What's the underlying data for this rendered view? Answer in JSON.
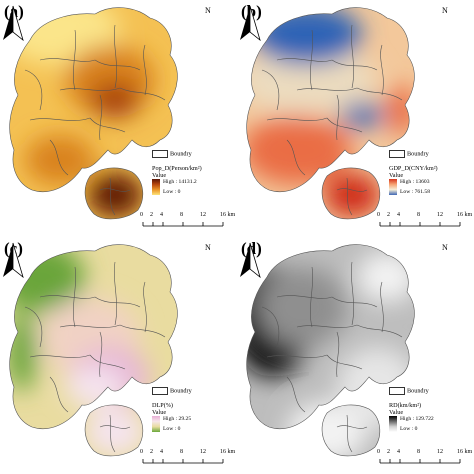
{
  "panels": [
    {
      "id": "a",
      "label": "(a)",
      "north": "N",
      "legend": {
        "boundary": "Boundry",
        "title": "Pop_D(Person/km²)",
        "value_word": "Value",
        "high": "High : 14131.2",
        "low": "Low : 0"
      },
      "ramp_colors": [
        "#5a1606",
        "#b6470d",
        "#e99426",
        "#fde37a"
      ],
      "colors": {
        "bg": "#f4c153",
        "c1": "#fbe58a",
        "c2": "#d9821f",
        "c3": "#a7410b",
        "c4": "#5d1705"
      }
    },
    {
      "id": "b",
      "label": "(b)",
      "north": "N",
      "legend": {
        "boundary": "Boundry",
        "title": "GDP_D(CNY/km²)",
        "value_word": "Value",
        "high": "High : 13603",
        "low": "Low : 761.58"
      },
      "ramp_colors": [
        "#d6341c",
        "#f6a473",
        "#f7efd5",
        "#3f67b5"
      ],
      "colors": {
        "bg": "#f3c89b",
        "c1": "#ecdcbf",
        "c2": "#2e63b6",
        "c3": "#ea6d44",
        "c4": "#cf2b17"
      }
    },
    {
      "id": "c",
      "label": "(c)",
      "north": "N",
      "legend": {
        "boundary": "Boundry",
        "title": "DLP(%)",
        "value_word": "Value",
        "high": "High : 29.25",
        "low": "Low : 0"
      },
      "ramp_colors": [
        "#e8aed6",
        "#f6e6e9",
        "#e8dca0",
        "#6ba83b"
      ],
      "colors": {
        "bg": "#e9dca0",
        "c1": "#f1d2c4",
        "c2": "#6aa53b",
        "c3": "#e6b6d6",
        "c4": "#f5e4ef"
      }
    },
    {
      "id": "d",
      "label": "(d)",
      "north": "N",
      "legend": {
        "boundary": "Boundry",
        "title": "RD(km/km²)",
        "value_word": "Value",
        "high": "High : 129.722",
        "low": "Low : 0"
      },
      "ramp_colors": [
        "#000000",
        "#6a6a6a",
        "#d2d2d2",
        "#ffffff"
      ],
      "colors": {
        "bg": "#bdbdbd",
        "c1": "#e6e6e6",
        "c2": "#111111",
        "c3": "#8f8f8f",
        "c4": "#f3f3f3"
      }
    }
  ],
  "scale_bar": {
    "ticks": [
      "0",
      "2",
      "4",
      "8",
      "12",
      "16 km"
    ]
  }
}
